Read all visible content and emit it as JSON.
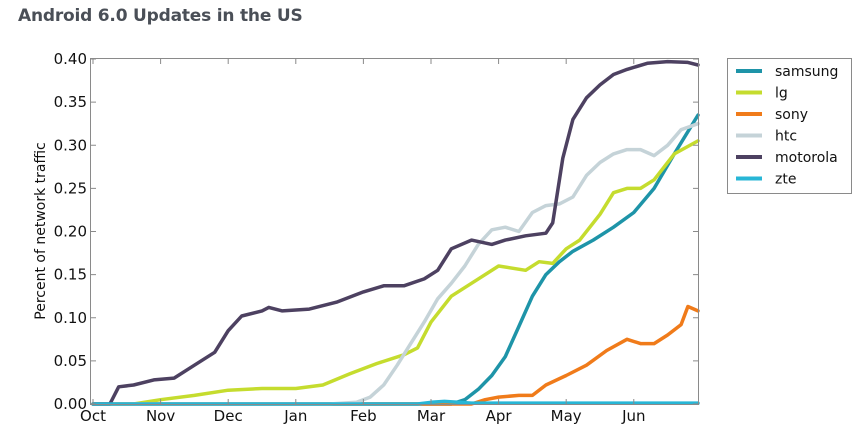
{
  "chart_data": {
    "type": "line",
    "title": "Android 6.0 Updates in the US",
    "xlabel": "",
    "ylabel": "Percent of network traffic",
    "x_unit": "months since Oct 1",
    "xlim": [
      0,
      8.95
    ],
    "ylim": [
      0,
      0.4
    ],
    "x_ticks": [
      {
        "value": 0,
        "label": "Oct"
      },
      {
        "value": 1,
        "label": "Nov"
      },
      {
        "value": 2,
        "label": "Dec"
      },
      {
        "value": 3,
        "label": "Jan"
      },
      {
        "value": 4,
        "label": "Feb"
      },
      {
        "value": 5,
        "label": "Mar"
      },
      {
        "value": 6,
        "label": "Apr"
      },
      {
        "value": 7,
        "label": "May"
      },
      {
        "value": 8,
        "label": "Jun"
      }
    ],
    "y_ticks": [
      {
        "value": 0.0,
        "label": "0.00"
      },
      {
        "value": 0.05,
        "label": "0.05"
      },
      {
        "value": 0.1,
        "label": "0.10"
      },
      {
        "value": 0.15,
        "label": "0.15"
      },
      {
        "value": 0.2,
        "label": "0.20"
      },
      {
        "value": 0.25,
        "label": "0.25"
      },
      {
        "value": 0.3,
        "label": "0.30"
      },
      {
        "value": 0.35,
        "label": "0.35"
      },
      {
        "value": 0.4,
        "label": "0.40"
      }
    ],
    "grid": false,
    "legend_position": "outside-right-top",
    "series": [
      {
        "name": "samsung",
        "color": "#1e94a8",
        "x": [
          0,
          5.3,
          5.5,
          5.7,
          5.9,
          6.1,
          6.3,
          6.5,
          6.7,
          6.9,
          7.1,
          7.4,
          7.7,
          8.0,
          8.3,
          8.6,
          8.95
        ],
        "y": [
          0,
          0,
          0.005,
          0.017,
          0.033,
          0.055,
          0.09,
          0.125,
          0.15,
          0.165,
          0.177,
          0.19,
          0.205,
          0.222,
          0.25,
          0.29,
          0.335
        ]
      },
      {
        "name": "lg",
        "color": "#c5dc2e",
        "x": [
          0,
          0.6,
          1.0,
          1.5,
          2.0,
          2.5,
          3.0,
          3.4,
          3.8,
          4.2,
          4.6,
          4.8,
          5.0,
          5.3,
          5.6,
          6.0,
          6.4,
          6.6,
          6.8,
          7.0,
          7.2,
          7.5,
          7.7,
          7.9,
          8.1,
          8.3,
          8.6,
          8.95
        ],
        "y": [
          0,
          0,
          0.005,
          0.01,
          0.016,
          0.018,
          0.018,
          0.022,
          0.035,
          0.047,
          0.057,
          0.065,
          0.095,
          0.125,
          0.14,
          0.16,
          0.155,
          0.165,
          0.163,
          0.18,
          0.19,
          0.22,
          0.245,
          0.25,
          0.25,
          0.26,
          0.29,
          0.305
        ]
      },
      {
        "name": "sony",
        "color": "#f07b1a",
        "x": [
          0,
          5.6,
          5.8,
          6.0,
          6.3,
          6.5,
          6.7,
          7.0,
          7.3,
          7.6,
          7.9,
          8.1,
          8.3,
          8.5,
          8.7,
          8.8,
          8.95
        ],
        "y": [
          0,
          0,
          0.005,
          0.008,
          0.01,
          0.01,
          0.022,
          0.033,
          0.045,
          0.062,
          0.075,
          0.07,
          0.07,
          0.08,
          0.092,
          0.113,
          0.108
        ]
      },
      {
        "name": "htc",
        "color": "#c5d3d8",
        "x": [
          0,
          3.5,
          3.9,
          4.1,
          4.3,
          4.5,
          4.7,
          4.9,
          5.1,
          5.3,
          5.5,
          5.7,
          5.9,
          6.1,
          6.3,
          6.5,
          6.7,
          6.9,
          7.1,
          7.3,
          7.5,
          7.7,
          7.9,
          8.1,
          8.3,
          8.5,
          8.7,
          8.95
        ],
        "y": [
          0,
          0,
          0.002,
          0.008,
          0.022,
          0.045,
          0.07,
          0.095,
          0.122,
          0.14,
          0.16,
          0.185,
          0.202,
          0.205,
          0.2,
          0.222,
          0.23,
          0.232,
          0.24,
          0.265,
          0.28,
          0.29,
          0.295,
          0.295,
          0.288,
          0.3,
          0.318,
          0.325
        ]
      },
      {
        "name": "motorola",
        "color": "#4d4161",
        "x": [
          0,
          0.25,
          0.38,
          0.6,
          0.9,
          1.2,
          1.5,
          1.8,
          2.0,
          2.2,
          2.5,
          2.6,
          2.8,
          3.2,
          3.6,
          4.0,
          4.3,
          4.6,
          4.9,
          5.1,
          5.3,
          5.6,
          5.9,
          6.1,
          6.4,
          6.7,
          6.8,
          6.95,
          7.1,
          7.3,
          7.5,
          7.7,
          7.9,
          8.2,
          8.5,
          8.8,
          8.95
        ],
        "y": [
          0,
          0,
          0.02,
          0.022,
          0.028,
          0.03,
          0.045,
          0.06,
          0.085,
          0.102,
          0.108,
          0.112,
          0.108,
          0.11,
          0.118,
          0.13,
          0.137,
          0.137,
          0.145,
          0.155,
          0.18,
          0.19,
          0.185,
          0.19,
          0.195,
          0.198,
          0.21,
          0.285,
          0.33,
          0.355,
          0.37,
          0.382,
          0.388,
          0.395,
          0.397,
          0.396,
          0.393
        ]
      },
      {
        "name": "zte",
        "color": "#27b6d6",
        "x": [
          0,
          4.8,
          5.0,
          5.2,
          5.4,
          5.6,
          6.0,
          8.95
        ],
        "y": [
          0,
          0,
          0.002,
          0.003,
          0.002,
          0.001,
          0.001,
          0.001
        ]
      }
    ]
  }
}
